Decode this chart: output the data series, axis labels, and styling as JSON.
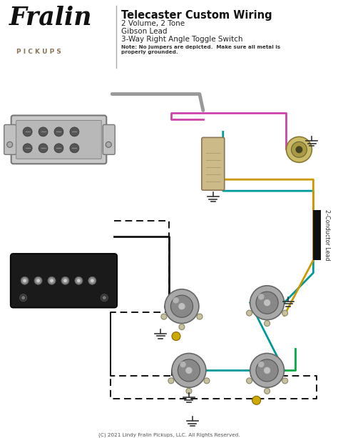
{
  "title": "Telecaster Custom Wiring",
  "subtitle_lines": [
    "2 Volume, 2 Tone",
    "Gibson Lead",
    "3-Way Right Angle Toggle Switch"
  ],
  "note": "Note: No jumpers are depicted.  Make sure all metal is\nproperly grounded.",
  "copyright": "(C) 2021 Lindy Fralin Pickups, LLC. All Rights Reserved.",
  "bg_color": "#ffffff",
  "pickups_text_color": "#8B7355",
  "wire_teal": "#009999",
  "wire_gold": "#cc9900",
  "wire_pink": "#cc44aa",
  "wire_green": "#00aa44",
  "wire_black": "#111111",
  "wire_gray": "#999999",
  "pot_outer": "#aaaaaa",
  "switch_body": "#ccbb88",
  "chrome_body": "#cccccc"
}
